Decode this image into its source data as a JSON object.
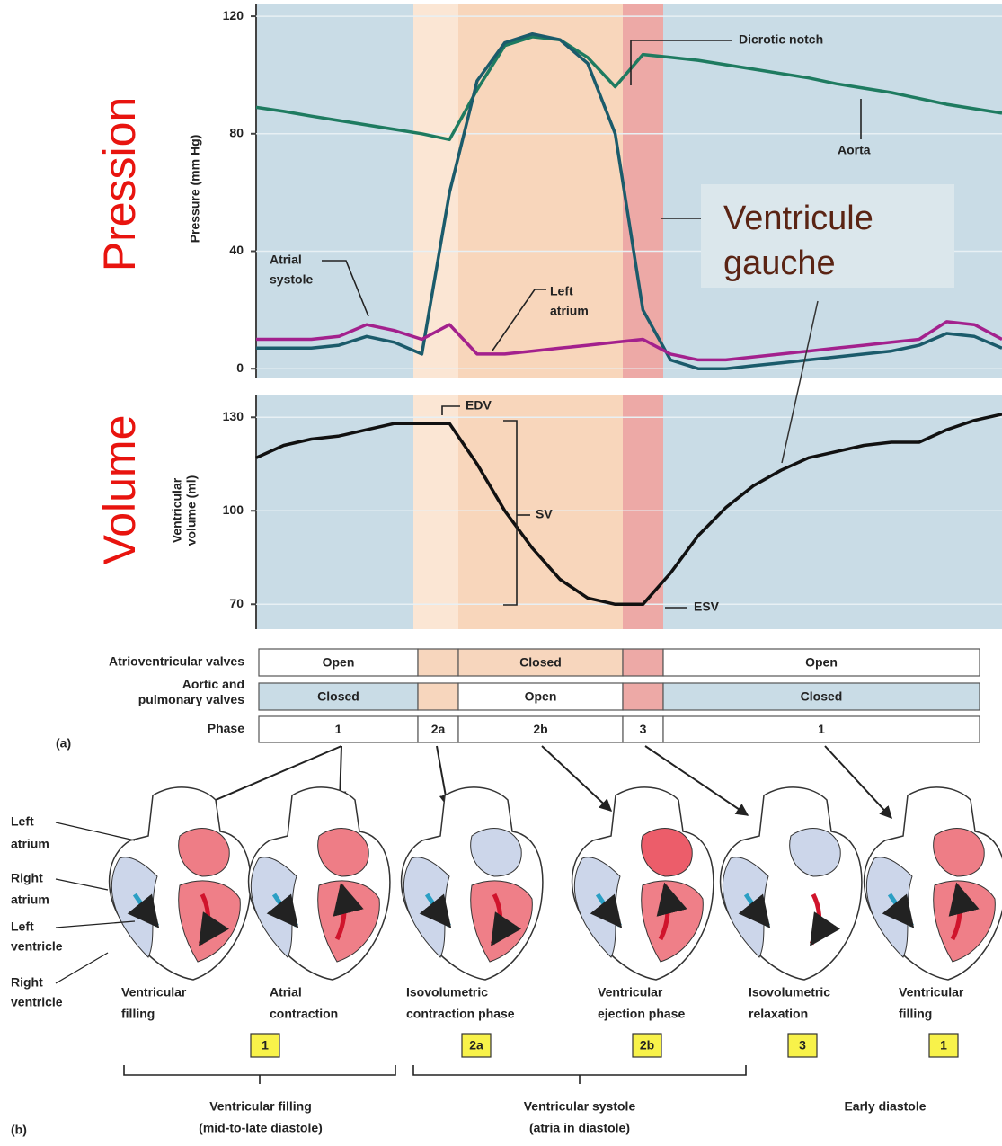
{
  "pressure": {
    "y_label": "Pressure (mm Hg)",
    "ylim": [
      -3,
      124
    ],
    "yticks": [
      0,
      40,
      80,
      120
    ],
    "series": [
      {
        "color": "#1e7b60",
        "values": [
          89,
          87.6,
          86,
          84.5,
          83,
          81.5,
          80,
          78,
          95,
          110,
          113,
          112,
          106,
          96,
          107,
          106,
          105,
          103.5,
          102,
          100.5,
          99,
          97,
          95.5,
          94,
          92,
          90,
          88.5,
          87
        ]
      },
      {
        "color": "#1b5b6b",
        "values": [
          7,
          7,
          7,
          8,
          11,
          9,
          5,
          60,
          98,
          111,
          114,
          112,
          104,
          80,
          20,
          3,
          0,
          0,
          1,
          2,
          3,
          4,
          5,
          6,
          8,
          12,
          11,
          7
        ]
      },
      {
        "color": "#a3218d",
        "values": [
          10,
          10,
          10,
          11,
          15,
          13,
          10,
          15,
          5,
          5,
          6,
          7,
          8,
          9,
          10,
          5,
          3,
          3,
          4,
          5,
          6,
          7,
          8,
          9,
          10,
          16,
          15,
          10
        ]
      }
    ],
    "annotations": {
      "dicrotic_notch": "Dicrotic notch",
      "aorta": "Aorta",
      "atrial_systole": [
        "Atrial",
        "systole"
      ],
      "left_atrium": [
        "Left",
        "atrium"
      ]
    }
  },
  "volume": {
    "y_label": [
      "Ventricular",
      "volume (ml)"
    ],
    "ylim": [
      62,
      137
    ],
    "yticks": [
      70,
      100,
      130
    ],
    "color": "#111111",
    "values": [
      117,
      121,
      123,
      124,
      126,
      128,
      128,
      128,
      115,
      100,
      88,
      78,
      72,
      70,
      70,
      80,
      92,
      101,
      108,
      113,
      117,
      119,
      121,
      122,
      122,
      126,
      129,
      131
    ],
    "annotations": {
      "edv": "EDV",
      "sv": "SV",
      "esv": "ESV"
    }
  },
  "overlay": {
    "pression": "Pression",
    "volume": "Volume",
    "callout": [
      "Ventricule",
      "gauche"
    ]
  },
  "table": {
    "panel": "(a)",
    "rows": [
      {
        "label": [
          "Atrioventricular valves"
        ],
        "cells": [
          "Open",
          "Closed",
          "Open"
        ]
      },
      {
        "label": [
          "Aortic and",
          "pulmonary valves"
        ],
        "cells": [
          "Closed",
          "Open",
          "Closed"
        ]
      },
      {
        "label": [
          "Phase"
        ],
        "cells": [
          "1",
          "2a",
          "2b",
          "3",
          "1"
        ]
      }
    ]
  },
  "hearts": {
    "panel": "(b)",
    "structures": [
      [
        "Left",
        "atrium"
      ],
      [
        "Right",
        "atrium"
      ],
      [
        "Left",
        "ventricle"
      ],
      [
        "Right",
        "ventricle"
      ]
    ],
    "captions": [
      [
        "Ventricular",
        "filling"
      ],
      [
        "Atrial",
        "contraction"
      ],
      [
        "Isovolumetric",
        "contraction phase"
      ],
      [
        "Ventricular",
        "ejection phase"
      ],
      [
        "Isovolumetric",
        "relaxation"
      ],
      [
        "Ventricular",
        "filling"
      ]
    ],
    "badges": [
      "1",
      "2a",
      "2b",
      "3",
      "1"
    ],
    "groups": [
      [
        "Ventricular filling",
        "(mid-to-late diastole)"
      ],
      [
        "Ventricular systole",
        "(atria in diastole)"
      ],
      [
        "Early diastole"
      ]
    ]
  }
}
